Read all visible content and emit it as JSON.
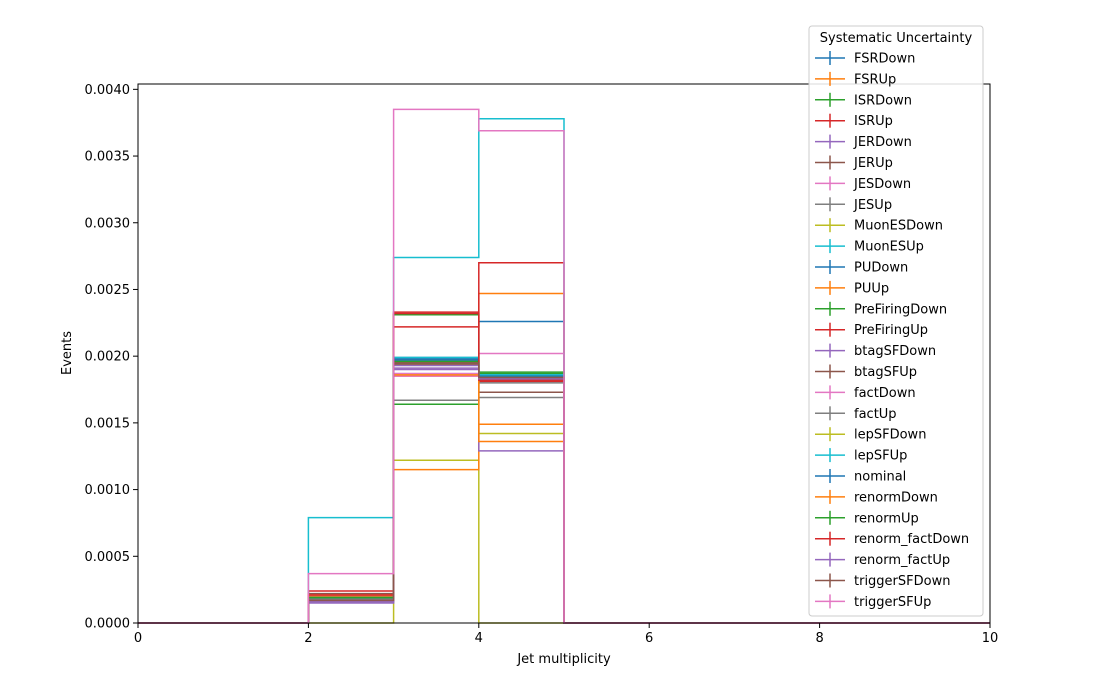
{
  "chart_data": {
    "type": "step",
    "xlabel": "Jet multiplicity",
    "ylabel": "Events",
    "xlim": [
      0,
      10
    ],
    "ylim": [
      0,
      0.00404
    ],
    "x_ticks": [
      "0",
      "2",
      "4",
      "6",
      "8",
      "10"
    ],
    "y_ticks": [
      "0.0000",
      "0.0005",
      "0.0010",
      "0.0015",
      "0.0020",
      "0.0025",
      "0.0030",
      "0.0035",
      "0.0040"
    ],
    "grid": false,
    "legend": {
      "title": "Systematic Uncertainty",
      "placement": "upper-right"
    },
    "bin_edges": [
      0,
      1,
      2,
      3,
      4,
      5,
      6,
      7,
      8,
      9,
      10
    ],
    "series": [
      {
        "name": "FSRDown",
        "color": "#1f77b4",
        "values": [
          0,
          0,
          0.00019,
          0.00199,
          0.00226,
          0,
          0,
          0,
          0,
          0
        ]
      },
      {
        "name": "FSRUp",
        "color": "#ff7f0e",
        "values": [
          0,
          0,
          0.0002,
          0.00185,
          0.00247,
          0,
          0,
          0,
          0,
          0
        ]
      },
      {
        "name": "ISRDown",
        "color": "#2ca02c",
        "values": [
          0,
          0,
          0.00018,
          0.00164,
          0.00187,
          0,
          0,
          0,
          0,
          0
        ]
      },
      {
        "name": "ISRUp",
        "color": "#d62728",
        "values": [
          0,
          0,
          0.00024,
          0.00222,
          0.0027,
          0,
          0,
          0,
          0,
          0
        ]
      },
      {
        "name": "JERDown",
        "color": "#9467bd",
        "values": [
          0,
          0,
          0.00017,
          0.00193,
          0.00183,
          0,
          0,
          0,
          0,
          0
        ]
      },
      {
        "name": "JERUp",
        "color": "#8c564b",
        "values": [
          0,
          0,
          0.00018,
          0.00194,
          0.00173,
          0,
          0,
          0,
          0,
          0
        ]
      },
      {
        "name": "JESDown",
        "color": "#e377c2",
        "values": [
          0,
          0,
          0.00021,
          0.00185,
          0.00202,
          0,
          0,
          0,
          0,
          0
        ]
      },
      {
        "name": "JESUp",
        "color": "#7f7f7f",
        "values": [
          0,
          0,
          0.00016,
          0.00167,
          0.00169,
          0,
          0,
          0,
          0,
          0
        ]
      },
      {
        "name": "MuonESDown",
        "color": "#bcbd22",
        "values": [
          0,
          0,
          0,
          0.00122,
          0,
          0,
          0,
          0,
          0,
          0
        ]
      },
      {
        "name": "MuonESUp",
        "color": "#17becf",
        "values": [
          0,
          0,
          0.00079,
          0.00274,
          0.00378,
          0,
          0,
          0,
          0,
          0
        ]
      },
      {
        "name": "PUDown",
        "color": "#1f77b4",
        "values": [
          0,
          0,
          0.00019,
          0.00198,
          0.00186,
          0,
          0,
          0,
          0,
          0
        ]
      },
      {
        "name": "PUUp",
        "color": "#ff7f0e",
        "values": [
          0,
          0,
          0.00019,
          0.00115,
          0.00149,
          0,
          0,
          0,
          0,
          0
        ]
      },
      {
        "name": "PreFiringDown",
        "color": "#2ca02c",
        "values": [
          0,
          0,
          0.00019,
          0.00231,
          0.00188,
          0,
          0,
          0,
          0,
          0
        ]
      },
      {
        "name": "PreFiringUp",
        "color": "#d62728",
        "values": [
          0,
          0,
          0.00019,
          0.00233,
          0.00181,
          0,
          0,
          0,
          0,
          0
        ]
      },
      {
        "name": "btagSFDown",
        "color": "#9467bd",
        "values": [
          0,
          0,
          0.00015,
          0.0019,
          0.00129,
          0,
          0,
          0,
          0,
          0
        ]
      },
      {
        "name": "btagSFUp",
        "color": "#8c564b",
        "values": [
          0,
          0,
          0.00022,
          0.00197,
          0.00182,
          0,
          0,
          0,
          0,
          0
        ]
      },
      {
        "name": "factDown",
        "color": "#e377c2",
        "values": [
          0,
          0,
          0.00019,
          0.00187,
          0.00184,
          0,
          0,
          0,
          0,
          0
        ]
      },
      {
        "name": "factUp",
        "color": "#7f7f7f",
        "values": [
          0,
          0,
          0.00018,
          0.00195,
          0.0018,
          0,
          0,
          0,
          0,
          0
        ]
      },
      {
        "name": "lepSFDown",
        "color": "#bcbd22",
        "values": [
          0,
          0,
          0.00019,
          0.00196,
          0.00142,
          0,
          0,
          0,
          0,
          0
        ]
      },
      {
        "name": "lepSFUp",
        "color": "#17becf",
        "values": [
          0,
          0,
          0.00019,
          0.00199,
          0.00186,
          0,
          0,
          0,
          0,
          0
        ]
      },
      {
        "name": "nominal",
        "color": "#1f77b4",
        "values": [
          0,
          0,
          0.00019,
          0.00197,
          0.00185,
          0,
          0,
          0,
          0,
          0
        ]
      },
      {
        "name": "renormDown",
        "color": "#ff7f0e",
        "values": [
          0,
          0,
          0.00021,
          0.00186,
          0.00136,
          0,
          0,
          0,
          0,
          0
        ]
      },
      {
        "name": "renormUp",
        "color": "#2ca02c",
        "values": [
          0,
          0,
          0.00019,
          0.00196,
          0.00184,
          0,
          0,
          0,
          0,
          0
        ]
      },
      {
        "name": "renorm_factDown",
        "color": "#d62728",
        "values": [
          0,
          0,
          0.00021,
          0.00232,
          0.00182,
          0,
          0,
          0,
          0,
          0
        ]
      },
      {
        "name": "renorm_factUp",
        "color": "#9467bd",
        "values": [
          0,
          0,
          0.00016,
          0.00191,
          0.00183,
          0,
          0,
          0,
          0,
          0
        ]
      },
      {
        "name": "triggerSFDown",
        "color": "#8c564b",
        "values": [
          0,
          0,
          0.00017,
          0.00195,
          0.00184,
          0,
          0,
          0,
          0,
          0
        ]
      },
      {
        "name": "triggerSFUp",
        "color": "#e377c2",
        "values": [
          0,
          0,
          0.00037,
          0.00385,
          0.00369,
          0,
          0,
          0,
          0,
          0
        ]
      }
    ]
  }
}
